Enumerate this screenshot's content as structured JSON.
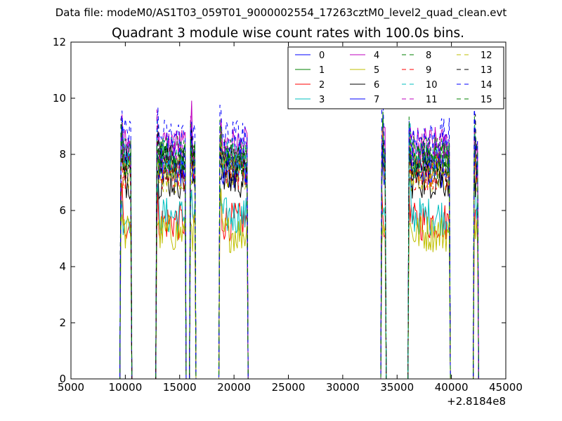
{
  "suptitle": "Data file: modeM0/AS1T03_059T01_9000002554_17263cztM0_level2_quad_clean.evt",
  "chart_data": {
    "type": "line",
    "title": "Quadrant 3 module wise count rates with 100.0s bins.",
    "xlabel": "",
    "ylabel": "",
    "x_offset_label": "+2.8184e8",
    "xlim": [
      5000,
      45000
    ],
    "ylim": [
      0,
      12
    ],
    "xticks": [
      5000,
      10000,
      15000,
      20000,
      25000,
      30000,
      35000,
      40000,
      45000
    ],
    "yticks": [
      0,
      2,
      4,
      6,
      8,
      10,
      12
    ],
    "grid": false,
    "legend": {
      "placement": "top-right",
      "columns": 4
    },
    "segments": [
      [
        9500,
        10600
      ],
      [
        12800,
        15600
      ],
      [
        15900,
        16500
      ],
      [
        18600,
        21300
      ],
      [
        33500,
        34000
      ],
      [
        36000,
        39900
      ],
      [
        42000,
        42500
      ]
    ],
    "series": [
      {
        "name": "0",
        "color": "#0000ff",
        "dash": "solid",
        "level": 7.5
      },
      {
        "name": "1",
        "color": "#008000",
        "dash": "solid",
        "level": 7.8
      },
      {
        "name": "2",
        "color": "#ff0000",
        "dash": "solid",
        "level": 5.6
      },
      {
        "name": "3",
        "color": "#00bfbf",
        "dash": "solid",
        "level": 5.8
      },
      {
        "name": "4",
        "color": "#bf00bf",
        "dash": "solid",
        "level": 8.3
      },
      {
        "name": "5",
        "color": "#bfbf00",
        "dash": "solid",
        "level": 5.2
      },
      {
        "name": "6",
        "color": "#000000",
        "dash": "solid",
        "level": 7.1
      },
      {
        "name": "7",
        "color": "#0000ff",
        "dash": "solid",
        "level": 7.6
      },
      {
        "name": "8",
        "color": "#008000",
        "dash": "dashed",
        "level": 8.0
      },
      {
        "name": "9",
        "color": "#ff0000",
        "dash": "dashed",
        "level": 7.4
      },
      {
        "name": "10",
        "color": "#00bfbf",
        "dash": "dashed",
        "level": 7.9
      },
      {
        "name": "11",
        "color": "#bf00bf",
        "dash": "dashed",
        "level": 8.1
      },
      {
        "name": "12",
        "color": "#bfbf00",
        "dash": "dashed",
        "level": 7.3
      },
      {
        "name": "13",
        "color": "#000000",
        "dash": "dashed",
        "level": 7.7
      },
      {
        "name": "14",
        "color": "#0000ff",
        "dash": "dashed",
        "level": 8.6
      },
      {
        "name": "15",
        "color": "#008000",
        "dash": "dashed",
        "level": 7.9
      }
    ]
  }
}
